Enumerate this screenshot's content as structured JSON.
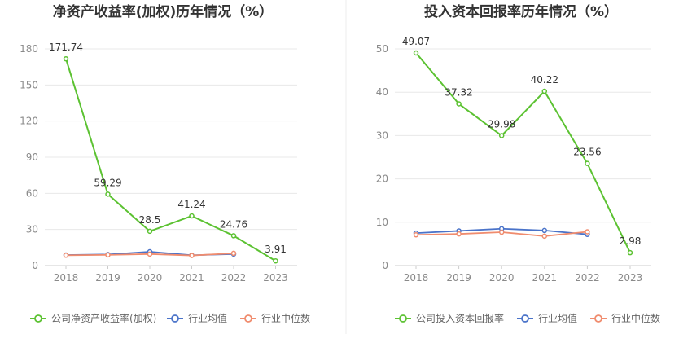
{
  "chart_data": [
    {
      "type": "line",
      "title": "净资产收益率(加权)历年情况（%）",
      "categories": [
        "2018",
        "2019",
        "2020",
        "2021",
        "2022",
        "2023"
      ],
      "ylim": [
        0,
        180
      ],
      "yticks": [
        0,
        30,
        60,
        90,
        120,
        150,
        180
      ],
      "grid": true,
      "legend_position": "bottom",
      "series": [
        {
          "name": "公司净资产收益率(加权)",
          "color": "#5cc232",
          "values": [
            171.74,
            59.29,
            28.5,
            41.24,
            24.76,
            3.91
          ],
          "labels": [
            "171.74",
            "59.29",
            "28.5",
            "41.24",
            "24.76",
            "3.91"
          ]
        },
        {
          "name": "行业均值",
          "color": "#4a73c9",
          "values": [
            8.8,
            9.2,
            11.5,
            8.6,
            9.6,
            null
          ]
        },
        {
          "name": "行业中位数",
          "color": "#f08c6e",
          "values": [
            8.6,
            8.9,
            9.6,
            8.4,
            10.2,
            null
          ]
        }
      ]
    },
    {
      "type": "line",
      "title": "投入资本回报率历年情况（%）",
      "categories": [
        "2018",
        "2019",
        "2020",
        "2021",
        "2022",
        "2023"
      ],
      "ylim": [
        0,
        50
      ],
      "yticks": [
        0,
        10,
        20,
        30,
        40,
        50
      ],
      "grid": true,
      "legend_position": "bottom",
      "series": [
        {
          "name": "公司投入资本回报率",
          "color": "#5cc232",
          "values": [
            49.07,
            37.32,
            29.98,
            40.22,
            23.56,
            2.98
          ],
          "labels": [
            "49.07",
            "37.32",
            "29.98",
            "40.22",
            "23.56",
            "2.98"
          ]
        },
        {
          "name": "行业均值",
          "color": "#4a73c9",
          "values": [
            7.5,
            8.0,
            8.5,
            8.1,
            7.2,
            null
          ]
        },
        {
          "name": "行业中位数",
          "color": "#f08c6e",
          "values": [
            7.1,
            7.3,
            7.7,
            6.8,
            7.8,
            null
          ]
        }
      ]
    }
  ]
}
